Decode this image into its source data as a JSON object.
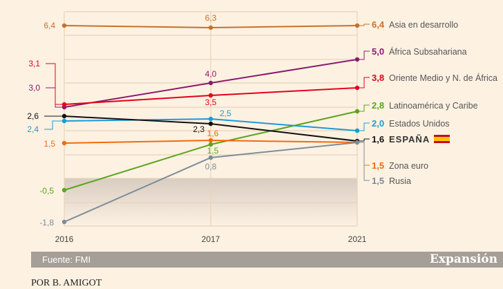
{
  "chart_data": {
    "type": "line",
    "categories": [
      "2016",
      "2017",
      "2021"
    ],
    "series": [
      {
        "name": "Asia en desarrollo",
        "values": [
          6.4,
          6.3,
          6.4
        ],
        "labels": [
          "6,4",
          "6,3",
          "6,4"
        ],
        "color": "#c8702a"
      },
      {
        "name": "África Subsahariana",
        "values": [
          3.0,
          4.0,
          5.0
        ],
        "labels": [
          "3,0",
          "4,0",
          "5,0"
        ],
        "color": "#8b1a6b"
      },
      {
        "name": "Oriente Medio y N. de África",
        "values": [
          3.1,
          3.5,
          3.8
        ],
        "labels": [
          "3,1",
          "3,5",
          "3,8"
        ],
        "color": "#e3001b"
      },
      {
        "name": "Latinoamérica y Caribe",
        "values": [
          -0.5,
          1.5,
          2.8
        ],
        "labels": [
          "-0,5",
          "1,5",
          "2,8"
        ],
        "color": "#5aa51e"
      },
      {
        "name": "Estados Unidos",
        "values": [
          2.4,
          2.5,
          2.0
        ],
        "labels": [
          "2,4",
          "2,5",
          "2,0"
        ],
        "color": "#1a9ad6"
      },
      {
        "name": "ESPAÑA",
        "values": [
          2.6,
          2.3,
          1.6
        ],
        "labels": [
          "2,6",
          "2,3",
          "1,6"
        ],
        "color": "#111111"
      },
      {
        "name": "Zona euro",
        "values": [
          1.5,
          1.6,
          1.5
        ],
        "labels": [
          "1,5",
          "1,6",
          "1,5"
        ],
        "color": "#f26a0a"
      },
      {
        "name": "Rusia",
        "values": [
          -1.8,
          0.8,
          1.5
        ],
        "labels": [
          "-1,8",
          "0,8",
          "1,5"
        ],
        "color": "#7c8c99"
      }
    ],
    "grid": true
  },
  "footer": {
    "source": "Fuente: FMI",
    "brand": "Expansión"
  },
  "byline": "POR B. AMIGOT"
}
